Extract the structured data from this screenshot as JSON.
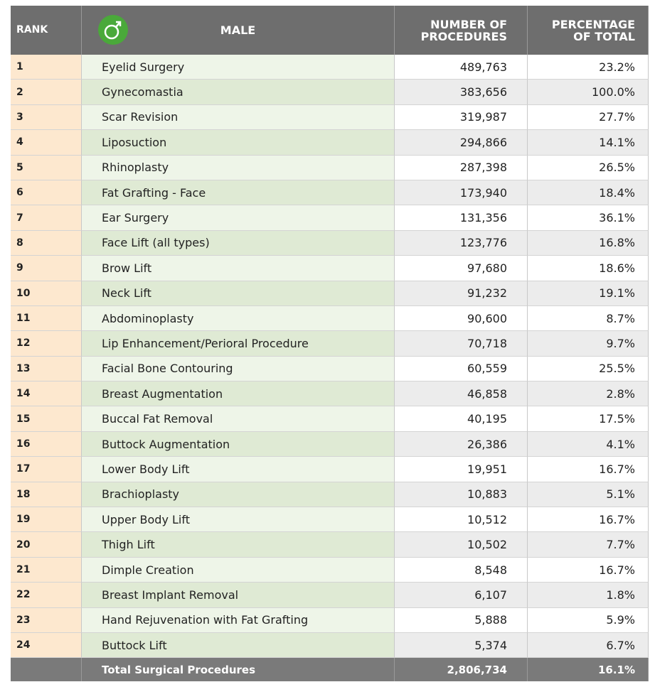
{
  "header": {
    "rank": "RANK",
    "male": "MALE",
    "number": [
      "NUMBER OF",
      "PROCEDURES"
    ],
    "percentage": [
      "PERCENTAGE",
      "OF TOTAL"
    ]
  },
  "table": {
    "rows": [
      [
        1,
        "Eyelid Surgery",
        "489,763",
        "23.2%"
      ],
      [
        2,
        "Gynecomastia",
        "383,656",
        "100.0%"
      ],
      [
        3,
        "Scar Revision",
        "319,987",
        "27.7%"
      ],
      [
        4,
        "Liposuction",
        "294,866",
        "14.1%"
      ],
      [
        5,
        "Rhinoplasty",
        "287,398",
        "26.5%"
      ],
      [
        6,
        "Fat Grafting - Face",
        "173,940",
        "18.4%"
      ],
      [
        7,
        "Ear Surgery",
        "131,356",
        "36.1%"
      ],
      [
        8,
        "Face Lift (all types)",
        "123,776",
        "16.8%"
      ],
      [
        9,
        "Brow Lift",
        "97,680",
        "18.6%"
      ],
      [
        10,
        "Neck Lift",
        "91,232",
        "19.1%"
      ],
      [
        11,
        "Abdominoplasty",
        "90,600",
        "8.7%"
      ],
      [
        12,
        "Lip Enhancement/Perioral Procedure",
        "70,718",
        "9.7%"
      ],
      [
        13,
        "Facial Bone Contouring",
        "60,559",
        "25.5%"
      ],
      [
        14,
        "Breast Augmentation",
        "46,858",
        "2.8%"
      ],
      [
        15,
        "Buccal Fat Removal",
        "40,195",
        "17.5%"
      ],
      [
        16,
        "Buttock Augmentation",
        "26,386",
        "4.1%"
      ],
      [
        17,
        "Lower Body Lift",
        "19,951",
        "16.7%"
      ],
      [
        18,
        "Brachioplasty",
        "10,883",
        "5.1%"
      ],
      [
        19,
        "Upper Body Lift",
        "10,512",
        "16.7%"
      ],
      [
        20,
        "Thigh Lift",
        "10,502",
        "7.7%"
      ],
      [
        21,
        "Dimple Creation",
        "8,548",
        "16.7%"
      ],
      [
        22,
        "Breast Implant Removal",
        "6,107",
        "1.8%"
      ],
      [
        23,
        "Hand Rejuvenation with Fat Grafting",
        "5,888",
        "5.9%"
      ],
      [
        24,
        "Buttock Lift",
        "5,374",
        "6.7%"
      ]
    ],
    "total": [
      "Total Surgical Procedures",
      "2,806,734",
      "16.1%"
    ]
  }
}
